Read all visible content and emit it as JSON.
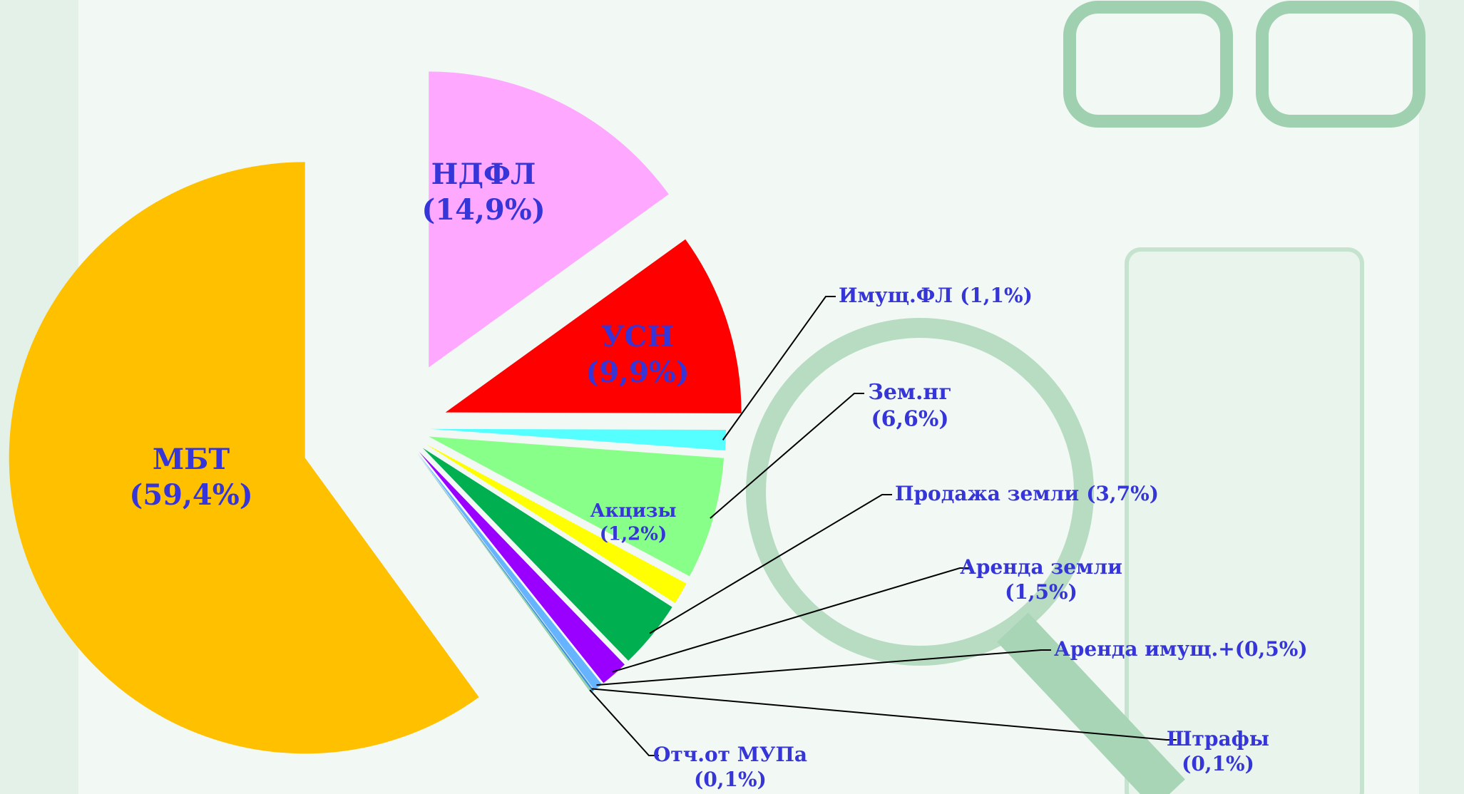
{
  "chart_data": {
    "type": "pie",
    "categories": [
      "НДФЛ",
      "УСН",
      "Имущ.ФЛ",
      "Зем.нг",
      "Акцизы",
      "Продажа земли",
      "Аренда земли",
      "Аренда имущ.+",
      "Штрафы",
      "Отч.от МУПа",
      "МБТ"
    ],
    "values": [
      14.9,
      9.9,
      1.1,
      6.6,
      1.2,
      3.7,
      1.5,
      0.5,
      0.1,
      0.1,
      59.4
    ],
    "value_labels": [
      "(14,9%)",
      "(9,9%)",
      "(1,1%)",
      "(6,6%)",
      "(1,2%)",
      "(3,7%)",
      "(1,5%)",
      "(0,5%)",
      "(0,1%)",
      "(0,1%)",
      "(59,4%)"
    ],
    "colors": [
      "#ffa8ff",
      "#ff0000",
      "#55ffff",
      "#88ff88",
      "#ffff00",
      "#00b050",
      "#9900ff",
      "#66b3ff",
      "#3d8fd9",
      "#8fd1a8",
      "#ffc000"
    ]
  }
}
